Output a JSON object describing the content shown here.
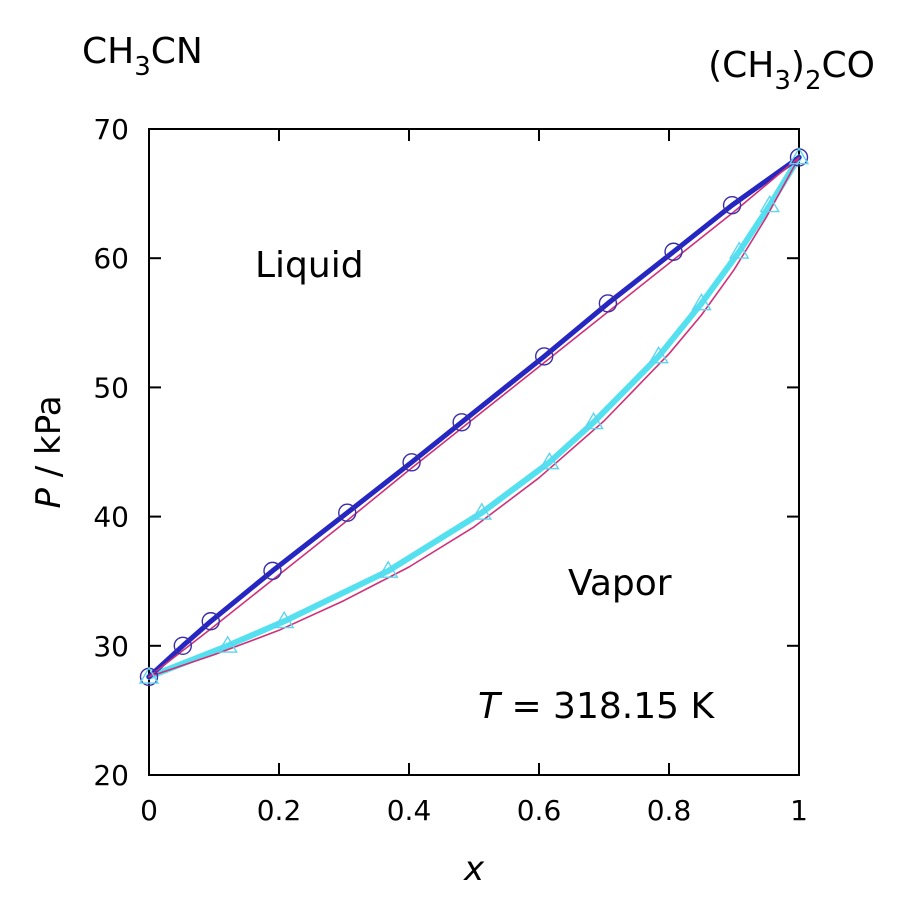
{
  "chart_data": {
    "type": "line",
    "title": "",
    "xlabel": "x",
    "ylabel_italic": "P",
    "ylabel_rest": " / kPa",
    "xlim": [
      0,
      1
    ],
    "ylim": [
      20,
      70
    ],
    "x_ticks": [
      "0",
      "0.2",
      "0.4",
      "0.6",
      "0.8",
      "1"
    ],
    "y_ticks": [
      "20",
      "30",
      "40",
      "50",
      "60",
      "70"
    ],
    "grid": false,
    "annotations": {
      "liquid": "Liquid",
      "vapor": "Vapor",
      "temp_symbol": "T",
      "temp_value": " = 318.15 K",
      "left_component": {
        "base1": "CH",
        "sub1": "3",
        "base2": "CN"
      },
      "right_component": {
        "pre": "(CH",
        "sub1": "3",
        "mid": ")",
        "sub2": "2",
        "post": "CO"
      }
    },
    "colors": {
      "bubble_exp": "#3a2ea8",
      "dew_exp": "#5fd4f0",
      "bubble_fit": "#2626c0",
      "dew_fit": "#55e0f0",
      "model": "#d0307a"
    },
    "series": [
      {
        "role": "bubble_exp",
        "marker": "circle",
        "x": [
          0,
          0.052,
          0.095,
          0.19,
          0.305,
          0.404,
          0.481,
          0.608,
          0.706,
          0.807,
          0.897,
          1.0
        ],
        "y": [
          27.6,
          30.0,
          31.9,
          35.8,
          40.3,
          44.2,
          47.3,
          52.4,
          56.5,
          60.5,
          64.1,
          67.8
        ]
      },
      {
        "role": "dew_exp",
        "marker": "triangle",
        "x": [
          0,
          0.121,
          0.208,
          0.368,
          0.512,
          0.616,
          0.684,
          0.784,
          0.85,
          0.908,
          0.955,
          1.0
        ],
        "y": [
          27.6,
          30.0,
          31.9,
          35.8,
          40.3,
          44.2,
          47.3,
          52.4,
          56.5,
          60.5,
          64.1,
          67.8
        ]
      },
      {
        "role": "bubble_fit",
        "x": [
          0,
          0.052,
          0.095,
          0.19,
          0.305,
          0.404,
          0.481,
          0.608,
          0.706,
          0.807,
          0.897,
          1.0
        ],
        "y": [
          27.6,
          30.0,
          31.9,
          35.8,
          40.3,
          44.2,
          47.3,
          52.4,
          56.5,
          60.5,
          64.1,
          67.8
        ]
      },
      {
        "role": "dew_fit",
        "x": [
          0,
          0.121,
          0.208,
          0.368,
          0.512,
          0.616,
          0.684,
          0.784,
          0.85,
          0.908,
          0.955,
          1.0
        ],
        "y": [
          27.6,
          30.0,
          31.9,
          35.8,
          40.3,
          44.2,
          47.3,
          52.4,
          56.5,
          60.5,
          64.1,
          67.8
        ]
      },
      {
        "role": "model_bubble",
        "x": [
          0,
          0.1,
          0.2,
          0.3,
          0.4,
          0.5,
          0.6,
          0.7,
          0.8,
          0.9,
          1.0
        ],
        "y": [
          27.6,
          31.5,
          35.5,
          39.5,
          43.6,
          47.6,
          51.6,
          55.6,
          59.6,
          63.6,
          67.8
        ]
      },
      {
        "role": "model_dew",
        "x": [
          0,
          0.1,
          0.2,
          0.3,
          0.4,
          0.5,
          0.6,
          0.7,
          0.8,
          0.85,
          0.9,
          0.95,
          1.0
        ],
        "y": [
          27.6,
          29.3,
          31.2,
          33.5,
          36.1,
          39.2,
          43.0,
          47.4,
          52.6,
          55.6,
          59.1,
          63.2,
          67.8
        ]
      }
    ]
  }
}
